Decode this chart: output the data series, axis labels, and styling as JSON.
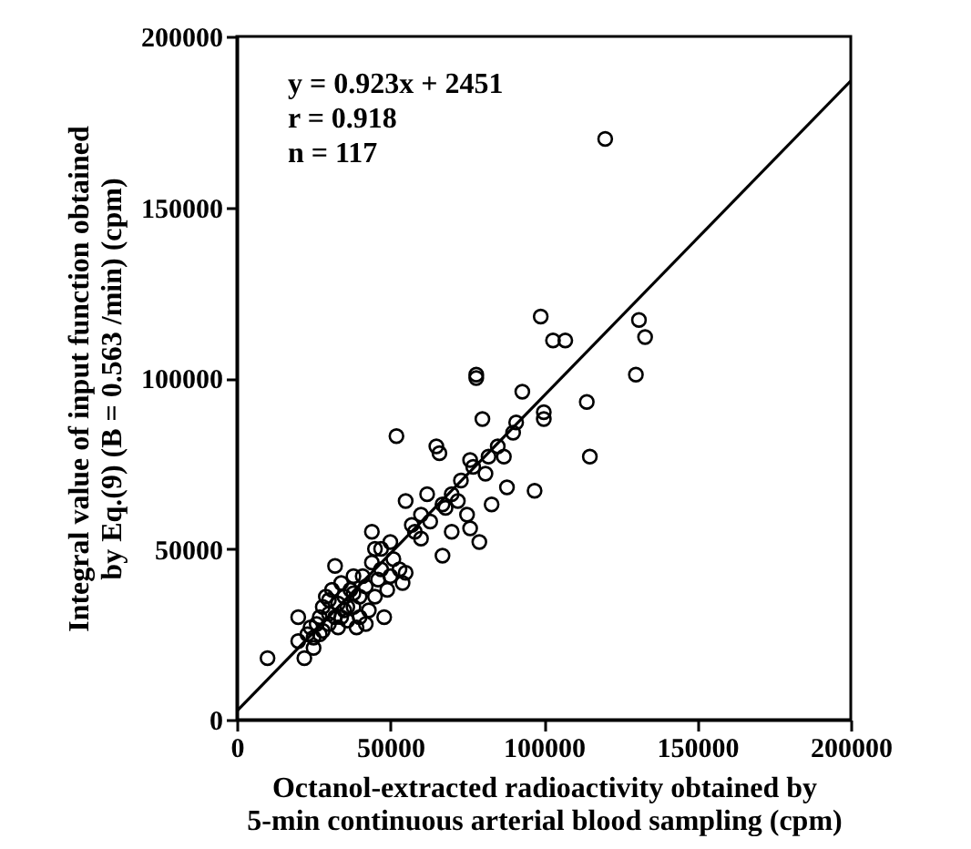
{
  "chart_data": {
    "type": "scatter",
    "xlabel": "Octanol-extracted radioactivity obtained by\n5-min continuous arterial blood sampling (cpm)",
    "ylabel": "Integral value of input function obtained\nby Eq.(9) (B = 0.563 /min)   (cpm)",
    "annotations": [
      "y = 0.923x + 2451",
      "r = 0.918",
      "n = 117"
    ],
    "xlim": [
      0,
      200000
    ],
    "xticks": [
      0,
      50000,
      100000,
      150000,
      200000
    ],
    "ylim": [
      0,
      200000
    ],
    "yticks": [
      0,
      50000,
      100000,
      150000,
      200000
    ],
    "grid": false,
    "marker": "circle",
    "series": [
      {
        "color": "#000000",
        "x": [
          10000,
          20000,
          20000,
          22000,
          23000,
          25000,
          25000,
          26000,
          27000,
          28000,
          28000,
          30000,
          30000,
          30000,
          31000,
          32000,
          32000,
          33000,
          33000,
          34000,
          35000,
          35000,
          36000,
          37000,
          38000,
          38000,
          39000,
          40000,
          40000,
          41000,
          42000,
          42000,
          43000,
          44000,
          44000,
          45000,
          46000,
          47000,
          47000,
          48000,
          49000,
          50000,
          50000,
          51000,
          52000,
          53000,
          54000,
          55000,
          55000,
          57000,
          60000,
          63000,
          65000,
          66000,
          67000,
          67000,
          68000,
          70000,
          70000,
          72000,
          73000,
          75000,
          76000,
          76000,
          77000,
          78000,
          78000,
          79000,
          80000,
          81000,
          82000,
          83000,
          85000,
          87000,
          88000,
          90000,
          91000,
          93000,
          97000,
          100000,
          99000,
          100000,
          103000,
          107000,
          114000,
          115000,
          120000,
          130000,
          131000,
          133000,
          60000,
          58000,
          62000,
          45000,
          38000,
          36000,
          34000,
          29000,
          27000,
          24000
        ],
        "values": [
          18000,
          30000,
          23000,
          18000,
          25000,
          21000,
          24000,
          28000,
          30000,
          33000,
          26000,
          35000,
          31000,
          28000,
          38000,
          45000,
          30000,
          34000,
          27000,
          40000,
          36000,
          32000,
          29000,
          38000,
          42000,
          33000,
          27000,
          36000,
          30000,
          42000,
          39000,
          28000,
          32000,
          55000,
          46000,
          36000,
          41000,
          50000,
          44000,
          30000,
          38000,
          42000,
          52000,
          47000,
          83000,
          44000,
          40000,
          64000,
          43000,
          57000,
          53000,
          58000,
          80000,
          78000,
          63000,
          48000,
          62000,
          66000,
          55000,
          64000,
          70000,
          60000,
          56000,
          76000,
          74000,
          101000,
          100000,
          52000,
          88000,
          72000,
          77000,
          63000,
          80000,
          77000,
          68000,
          84000,
          87000,
          96000,
          67000,
          90000,
          118000,
          88000,
          111000,
          111000,
          93000,
          77000,
          170000,
          101000,
          117000,
          112000,
          60000,
          55000,
          66000,
          50000,
          37000,
          33000,
          30000,
          36000,
          25000,
          27000
        ]
      },
      {
        "type": "line",
        "marker": "none",
        "color": "#000000",
        "x": [
          0,
          200000
        ],
        "values": [
          2500,
          187000
        ]
      }
    ]
  }
}
